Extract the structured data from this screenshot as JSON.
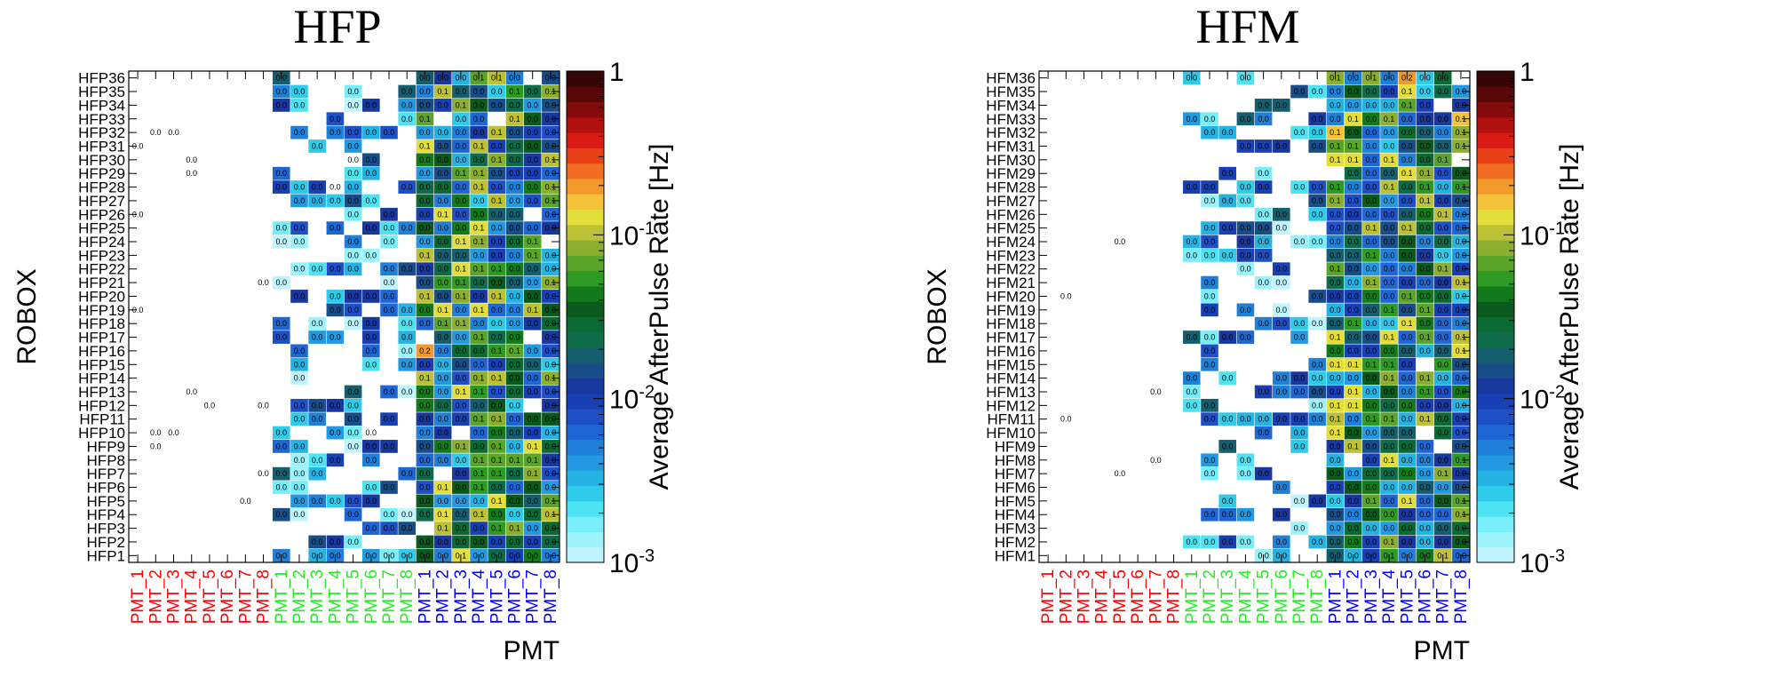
{
  "chart_data": [
    {
      "type": "heatmap",
      "title": "HFP",
      "ylabel": "ROBOX",
      "xlabel": "PMT",
      "zlabel": "Average AfterPulse Rate [Hz]",
      "zscale": "log",
      "zlim": [
        0.001,
        1
      ],
      "colorbar_ticks": [
        {
          "label": "1",
          "value": 1
        },
        {
          "label": "10",
          "exp": "-1",
          "value": 0.1
        },
        {
          "label": "10",
          "exp": "-2",
          "value": 0.01
        },
        {
          "label": "10",
          "exp": "-3",
          "value": 0.001
        }
      ],
      "categories": [
        "PMT_1",
        "PMT_2",
        "PMT_3",
        "PMT_4",
        "PMT_5",
        "PMT_6",
        "PMT_7",
        "PMT_8",
        "PMT_1",
        "PMT_2",
        "PMT_3",
        "PMT_4",
        "PMT_5",
        "PMT_6",
        "PMT_7",
        "PMT_8",
        "PMT_1",
        "PMT_2",
        "PMT_3",
        "PMT_4",
        "PMT_5",
        "PMT_6",
        "PMT_7",
        "PMT_8"
      ],
      "category_colors": [
        "#ff0000",
        "#ff0000",
        "#ff0000",
        "#ff0000",
        "#ff0000",
        "#ff0000",
        "#ff0000",
        "#ff0000",
        "#22ee22",
        "#22ee22",
        "#22ee22",
        "#22ee22",
        "#22ee22",
        "#22ee22",
        "#22ee22",
        "#22ee22",
        "#0000ff",
        "#0000ff",
        "#0000ff",
        "#0000ff",
        "#0000ff",
        "#0000ff",
        "#0000ff",
        "#0000ff"
      ],
      "rows": [
        "HFP36",
        "HFP35",
        "HFP34",
        "HFP33",
        "HFP32",
        "HFP31",
        "HFP30",
        "HFP29",
        "HFP28",
        "HFP27",
        "HFP26",
        "HFP25",
        "HFP24",
        "HFP23",
        "HFP22",
        "HFP21",
        "HFP20",
        "HFP19",
        "HFP18",
        "HFP17",
        "HFP16",
        "HFP15",
        "HFP14",
        "HFP13",
        "HFP12",
        "HFP11",
        "HFP10",
        "HFP9",
        "HFP8",
        "HFP7",
        "HFP6",
        "HFP5",
        "HFP4",
        "HFP3",
        "HFP2",
        "HFP1"
      ],
      "seed": 7,
      "hot_cells": [
        {
          "row": "HFP16",
          "col": 16,
          "value": 0.2,
          "label": "0.2"
        },
        {
          "row": "HFP13",
          "col": 18,
          "value": 0.12,
          "label": "0.1"
        },
        {
          "row": "HFP32",
          "col": 20,
          "value": 0.1,
          "label": "0.1"
        },
        {
          "row": "HFP20",
          "col": 20,
          "value": 0.1,
          "label": "0.1"
        },
        {
          "row": "HFP36",
          "col": 20,
          "value": 0.1,
          "label": "0.1"
        },
        {
          "row": "HFP7",
          "col": 22,
          "value": 0.09,
          "label": "0.1"
        }
      ]
    },
    {
      "type": "heatmap",
      "title": "HFM",
      "ylabel": "ROBOX",
      "xlabel": "PMT",
      "zlabel": "Average AfterPulse Rate [Hz]",
      "zscale": "log",
      "zlim": [
        0.001,
        1
      ],
      "colorbar_ticks": [
        {
          "label": "1",
          "value": 1
        },
        {
          "label": "10",
          "exp": "-1",
          "value": 0.1
        },
        {
          "label": "10",
          "exp": "-2",
          "value": 0.01
        },
        {
          "label": "10",
          "exp": "-3",
          "value": 0.001
        }
      ],
      "categories": [
        "PMT_1",
        "PMT_2",
        "PMT_3",
        "PMT_4",
        "PMT_5",
        "PMT_6",
        "PMT_7",
        "PMT_8",
        "PMT_1",
        "PMT_2",
        "PMT_3",
        "PMT_4",
        "PMT_5",
        "PMT_6",
        "PMT_7",
        "PMT_8",
        "PMT_1",
        "PMT_2",
        "PMT_3",
        "PMT_4",
        "PMT_5",
        "PMT_6",
        "PMT_7",
        "PMT_8"
      ],
      "category_colors": [
        "#ff0000",
        "#ff0000",
        "#ff0000",
        "#ff0000",
        "#ff0000",
        "#ff0000",
        "#ff0000",
        "#ff0000",
        "#22ee22",
        "#22ee22",
        "#22ee22",
        "#22ee22",
        "#22ee22",
        "#22ee22",
        "#22ee22",
        "#22ee22",
        "#0000ff",
        "#0000ff",
        "#0000ff",
        "#0000ff",
        "#0000ff",
        "#0000ff",
        "#0000ff",
        "#0000ff"
      ],
      "rows": [
        "HFM36",
        "HFM35",
        "HFM34",
        "HFM33",
        "HFM32",
        "HFM31",
        "HFM30",
        "HFM29",
        "HFM28",
        "HFM27",
        "HFM26",
        "HFM25",
        "HFM24",
        "HFM23",
        "HFM22",
        "HFM21",
        "HFM20",
        "HFM19",
        "HFM18",
        "HFM17",
        "HFM16",
        "HFM15",
        "HFM14",
        "HFM13",
        "HFM12",
        "HFM11",
        "HFM10",
        "HFM9",
        "HFM8",
        "HFM7",
        "HFM6",
        "HFM5",
        "HFM4",
        "HFM3",
        "HFM2",
        "HFM1"
      ],
      "seed": 13,
      "hot_cells": [
        {
          "row": "HFM32",
          "col": 16,
          "value": 0.15,
          "label": "0.1"
        },
        {
          "row": "HFM36",
          "col": 20,
          "value": 0.2,
          "label": "0.2"
        },
        {
          "row": "HFM33",
          "col": 23,
          "value": 0.15,
          "label": "0.1"
        },
        {
          "row": "HFM29",
          "col": 20,
          "value": 0.12,
          "label": "0.1"
        },
        {
          "row": "HFM36",
          "col": 16,
          "value": 0.09,
          "label": "0.1"
        },
        {
          "row": "HFM7",
          "col": 22,
          "value": 0.09,
          "label": "0.1"
        }
      ]
    }
  ]
}
